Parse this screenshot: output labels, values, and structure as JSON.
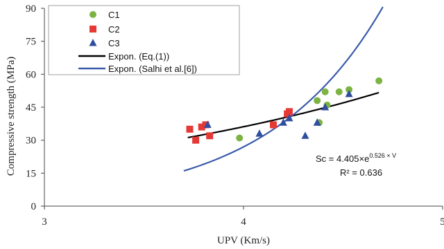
{
  "chart_data": {
    "type": "scatter",
    "xlabel": "UPV (Km/s)",
    "ylabel": "Compressive strength (MPa)",
    "xlim": [
      3,
      5
    ],
    "ylim": [
      0,
      90
    ],
    "xticks": [
      "3",
      "4",
      "5"
    ],
    "xtick_values": [
      3,
      4,
      5
    ],
    "yticks": [
      "0",
      "15",
      "30",
      "45",
      "60",
      "75",
      "90"
    ],
    "ytick_values": [
      0,
      15,
      30,
      45,
      60,
      75,
      90
    ],
    "grid": false,
    "legend_position": "top-left",
    "series": [
      {
        "name": "C1",
        "kind": "points",
        "marker": "circle",
        "color": "#7cb342",
        "points": [
          [
            3.98,
            31
          ],
          [
            4.37,
            48
          ],
          [
            4.38,
            38
          ],
          [
            4.41,
            52
          ],
          [
            4.42,
            46
          ],
          [
            4.48,
            52
          ],
          [
            4.53,
            53
          ],
          [
            4.68,
            57
          ]
        ]
      },
      {
        "name": "C2",
        "kind": "points",
        "marker": "square",
        "color": "#e53935",
        "points": [
          [
            3.73,
            35
          ],
          [
            3.76,
            30
          ],
          [
            3.79,
            36
          ],
          [
            3.81,
            37
          ],
          [
            3.83,
            32
          ],
          [
            4.15,
            37
          ],
          [
            4.22,
            42
          ],
          [
            4.23,
            43
          ]
        ]
      },
      {
        "name": "C3",
        "kind": "points",
        "marker": "triangle",
        "color": "#2f4f9e",
        "points": [
          [
            3.82,
            37
          ],
          [
            4.08,
            33
          ],
          [
            4.2,
            38
          ],
          [
            4.23,
            40
          ],
          [
            4.31,
            32
          ],
          [
            4.37,
            38
          ],
          [
            4.41,
            45
          ],
          [
            4.53,
            51
          ]
        ]
      },
      {
        "name": "Expon. (Eq.(1))",
        "kind": "curve",
        "color": "#000000",
        "a": 4.405,
        "b": 0.526,
        "x_range": [
          3.72,
          4.68
        ]
      },
      {
        "name": "Expon. (Salhi et al.[6])",
        "kind": "curve",
        "color": "#3a5ba9",
        "a": 0.0263,
        "b": 1.733,
        "x_range": [
          3.7,
          4.7
        ]
      }
    ],
    "annotations": {
      "equation_prefix": "Sc = 4.405×e",
      "equation_exponent": "0.526 × V",
      "r_squared": "R² = 0.636"
    }
  }
}
